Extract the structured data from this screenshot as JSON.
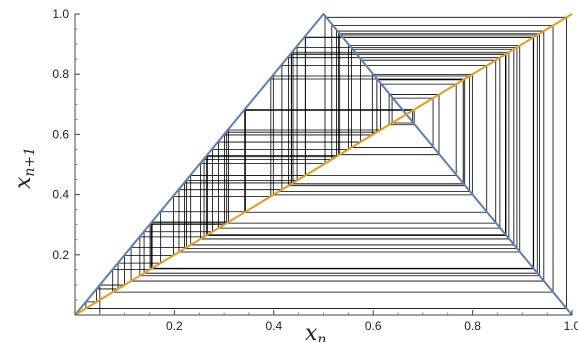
{
  "chart_data": {
    "type": "line",
    "title": "",
    "xlabel": "x",
    "xlabel_sub": "n",
    "ylabel": "x",
    "ylabel_sub": "n+1",
    "xlim": [
      0,
      1.0
    ],
    "ylim": [
      0,
      1.0
    ],
    "x_ticks": [
      "0.2",
      "0.4",
      "0.6",
      "0.8",
      "1.0"
    ],
    "y_ticks": [
      "0.2",
      "0.4",
      "0.6",
      "0.8",
      "1.0"
    ],
    "grid": false,
    "legend": "none",
    "series": [
      {
        "kind": "tent-map",
        "color": "#5b80b2",
        "points": [
          [
            0,
            0
          ],
          [
            0.5,
            1.0
          ],
          [
            1.0,
            0
          ]
        ]
      },
      {
        "kind": "identity-line",
        "color": "#e59c1a",
        "points": [
          [
            0,
            0
          ],
          [
            1.0,
            1.0
          ]
        ]
      },
      {
        "kind": "cobweb",
        "color": "#000000",
        "map": "tent",
        "mu": 1.99,
        "x0": 0.05,
        "iterations": 80
      }
    ]
  }
}
